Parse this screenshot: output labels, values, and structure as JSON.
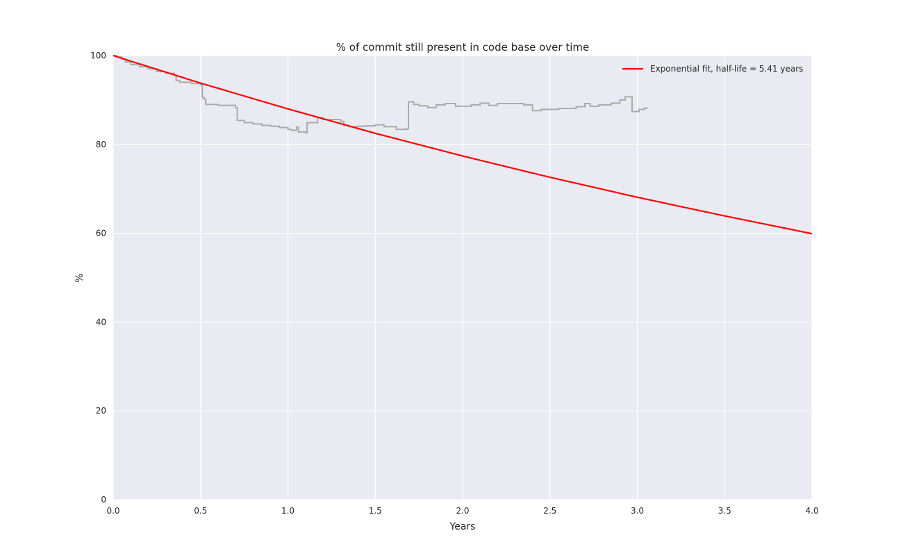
{
  "chart_data": {
    "type": "line",
    "title": "% of commit still present in code base over time",
    "xlabel": "Years",
    "ylabel": "%",
    "xlim": [
      0.0,
      4.0
    ],
    "ylim": [
      0,
      100
    ],
    "x_ticks": [
      "0.0",
      "0.5",
      "1.0",
      "1.5",
      "2.0",
      "2.5",
      "3.0",
      "3.5",
      "4.0"
    ],
    "y_ticks": [
      "0",
      "20",
      "40",
      "60",
      "80",
      "100"
    ],
    "grid": true,
    "legend_position": "top-right",
    "background_color": "#eaeaf2",
    "grid_color": "#ffffff",
    "series": [
      {
        "name": "",
        "color": "#aaaaaa",
        "style": "step",
        "points": [
          [
            0.0,
            100.0
          ],
          [
            0.02,
            99.7
          ],
          [
            0.05,
            99.2
          ],
          [
            0.07,
            98.6
          ],
          [
            0.1,
            98.0
          ],
          [
            0.15,
            97.5
          ],
          [
            0.2,
            97.0
          ],
          [
            0.25,
            96.4
          ],
          [
            0.3,
            96.0
          ],
          [
            0.35,
            95.6
          ],
          [
            0.36,
            94.4
          ],
          [
            0.38,
            94.0
          ],
          [
            0.45,
            93.7
          ],
          [
            0.5,
            93.4
          ],
          [
            0.51,
            90.6
          ],
          [
            0.52,
            90.2
          ],
          [
            0.53,
            89.0
          ],
          [
            0.6,
            88.8
          ],
          [
            0.7,
            88.3
          ],
          [
            0.71,
            85.4
          ],
          [
            0.75,
            84.9
          ],
          [
            0.8,
            84.6
          ],
          [
            0.85,
            84.3
          ],
          [
            0.9,
            84.1
          ],
          [
            0.95,
            83.8
          ],
          [
            1.0,
            83.4
          ],
          [
            1.02,
            83.2
          ],
          [
            1.05,
            83.9
          ],
          [
            1.06,
            82.8
          ],
          [
            1.1,
            82.6
          ],
          [
            1.11,
            84.9
          ],
          [
            1.17,
            86.0
          ],
          [
            1.2,
            85.6
          ],
          [
            1.3,
            85.2
          ],
          [
            1.32,
            84.3
          ],
          [
            1.35,
            84.0
          ],
          [
            1.4,
            84.1
          ],
          [
            1.45,
            84.2
          ],
          [
            1.5,
            84.4
          ],
          [
            1.55,
            84.0
          ],
          [
            1.62,
            83.4
          ],
          [
            1.68,
            83.5
          ],
          [
            1.69,
            89.6
          ],
          [
            1.72,
            89.0
          ],
          [
            1.75,
            88.7
          ],
          [
            1.8,
            88.3
          ],
          [
            1.85,
            88.9
          ],
          [
            1.9,
            89.2
          ],
          [
            1.96,
            88.6
          ],
          [
            2.05,
            88.9
          ],
          [
            2.1,
            89.3
          ],
          [
            2.15,
            88.8
          ],
          [
            2.2,
            89.2
          ],
          [
            2.3,
            89.2
          ],
          [
            2.35,
            88.9
          ],
          [
            2.4,
            87.6
          ],
          [
            2.45,
            87.9
          ],
          [
            2.55,
            88.1
          ],
          [
            2.65,
            88.5
          ],
          [
            2.7,
            89.2
          ],
          [
            2.73,
            88.6
          ],
          [
            2.78,
            88.9
          ],
          [
            2.85,
            89.3
          ],
          [
            2.9,
            90.0
          ],
          [
            2.93,
            90.7
          ],
          [
            2.97,
            87.4
          ],
          [
            3.01,
            87.9
          ],
          [
            3.04,
            88.2
          ],
          [
            3.06,
            88.2
          ]
        ]
      },
      {
        "name": "Exponential fit, half-life = 5.41 years",
        "color": "#ff0000",
        "style": "line",
        "points": [
          [
            0.0,
            100.0
          ],
          [
            0.5,
            93.8
          ],
          [
            1.0,
            88.0
          ],
          [
            1.5,
            82.5
          ],
          [
            2.0,
            77.4
          ],
          [
            2.5,
            72.6
          ],
          [
            3.0,
            68.1
          ],
          [
            3.5,
            63.9
          ],
          [
            4.0,
            59.9
          ]
        ]
      }
    ]
  }
}
